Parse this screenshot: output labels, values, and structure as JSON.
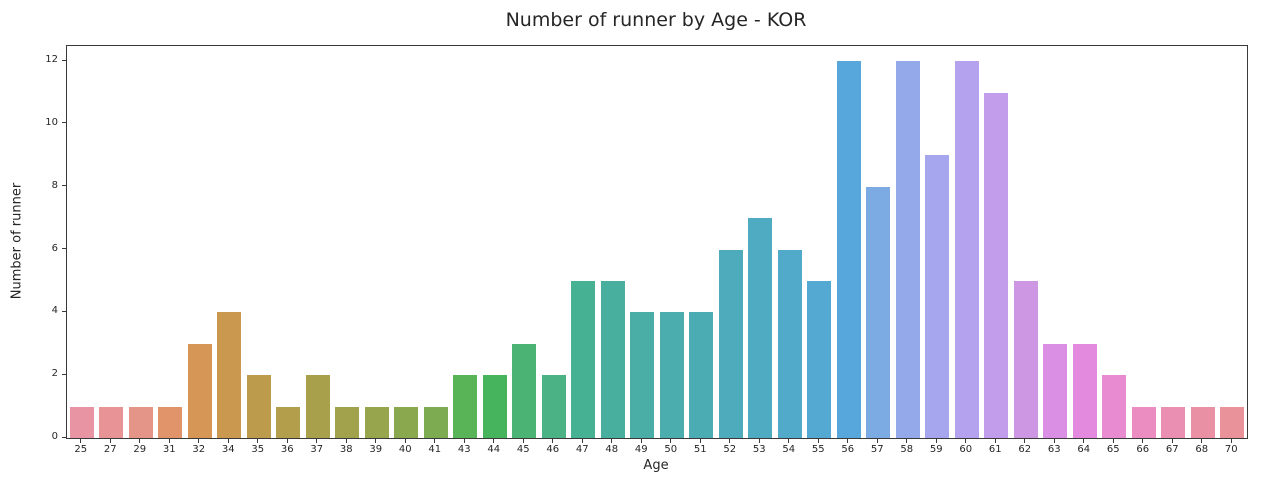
{
  "chart_data": {
    "type": "bar",
    "title": "Number of runner by Age - KOR",
    "xlabel": "Age",
    "ylabel": "Number of runner",
    "categories": [
      "25",
      "27",
      "29",
      "31",
      "32",
      "34",
      "35",
      "36",
      "37",
      "38",
      "39",
      "40",
      "41",
      "43",
      "44",
      "45",
      "46",
      "47",
      "48",
      "49",
      "50",
      "51",
      "52",
      "53",
      "54",
      "55",
      "56",
      "57",
      "58",
      "59",
      "60",
      "61",
      "62",
      "63",
      "64",
      "65",
      "66",
      "67",
      "68",
      "70"
    ],
    "values": [
      1,
      1,
      1,
      1,
      3,
      4,
      2,
      1,
      2,
      1,
      1,
      1,
      1,
      2,
      2,
      3,
      2,
      5,
      5,
      4,
      4,
      4,
      6,
      7,
      6,
      5,
      12,
      8,
      12,
      9,
      12,
      11,
      5,
      3,
      3,
      2,
      1,
      1,
      1,
      1
    ],
    "bar_colors": [
      "#e894a3",
      "#e89497",
      "#e59488",
      "#e1946a",
      "#d69655",
      "#cb9850",
      "#bd9b4d",
      "#b29e4b",
      "#a9a04c",
      "#a2a24c",
      "#97a54c",
      "#8aa84d",
      "#7cab51",
      "#58b456",
      "#46b45d",
      "#4bb374",
      "#4ab285",
      "#47b193",
      "#48af9e",
      "#4aaea7",
      "#4badae",
      "#4cacb3",
      "#4eabbb",
      "#4fabc2",
      "#51aaca",
      "#53a9d2",
      "#57a7dc",
      "#7caae3",
      "#93a9e9",
      "#a5a6ee",
      "#b5a2ef",
      "#c29dec",
      "#cd97e3",
      "#da8fe4",
      "#e48ade",
      "#e98bd0",
      "#eb8dc0",
      "#eb8fb2",
      "#ea90a5",
      "#ea929a"
    ],
    "yticks": [
      0,
      2,
      4,
      6,
      8,
      10,
      12
    ],
    "ylim": [
      0,
      12.48
    ],
    "grid": false,
    "legend": null,
    "background_color": "#ffffff",
    "spine_color": "#3a3a3a",
    "text_color": "#262626"
  }
}
